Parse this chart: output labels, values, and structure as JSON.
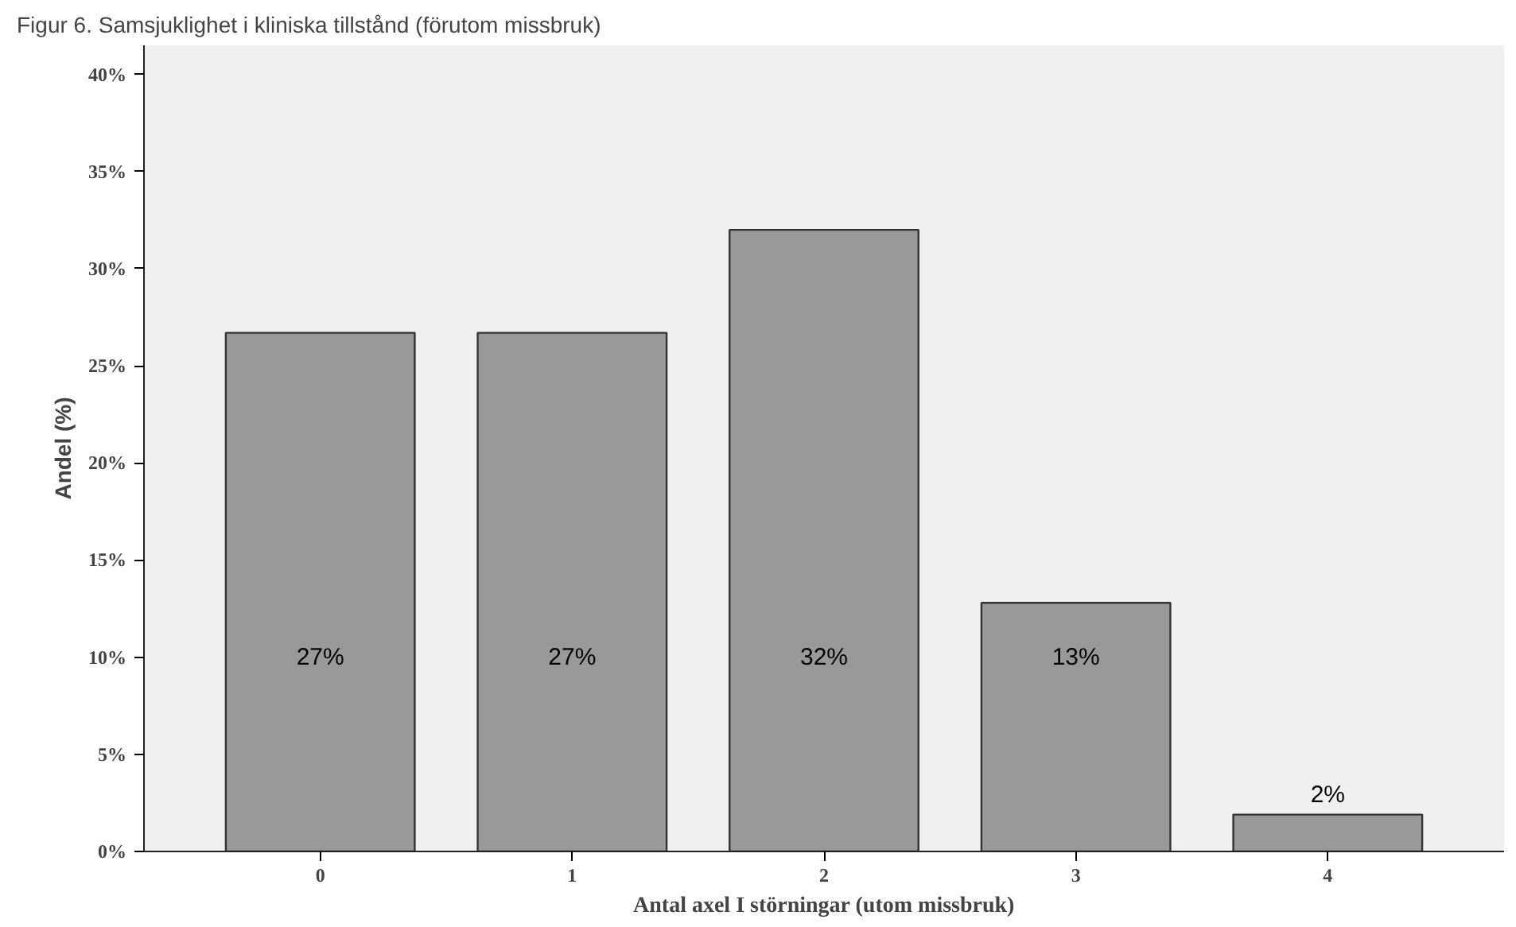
{
  "chart_data": {
    "type": "bar",
    "title": "Figur 6. Samsjuklighet i kliniska tillstånd (förutom missbruk)",
    "xlabel": "Antal axel I störningar (utom missbruk)",
    "ylabel": "Andel (%)",
    "categories": [
      "0",
      "1",
      "2",
      "3",
      "4"
    ],
    "values": [
      26.7,
      26.7,
      32.0,
      12.8,
      1.9
    ],
    "value_labels": [
      "27%",
      "27%",
      "32%",
      "13%",
      "2%"
    ],
    "color": "#999999",
    "ylim": [
      0,
      41.5
    ],
    "yticks": [
      {
        "value": 0,
        "label": "0%"
      },
      {
        "value": 5,
        "label": "5%"
      },
      {
        "value": 10,
        "label": "10%"
      },
      {
        "value": 15,
        "label": "15%"
      },
      {
        "value": 20,
        "label": "20%"
      },
      {
        "value": 25,
        "label": "25%"
      },
      {
        "value": 30,
        "label": "30%"
      },
      {
        "value": 35,
        "label": "35%"
      },
      {
        "value": 40,
        "label": "40%"
      }
    ],
    "grid": false
  }
}
